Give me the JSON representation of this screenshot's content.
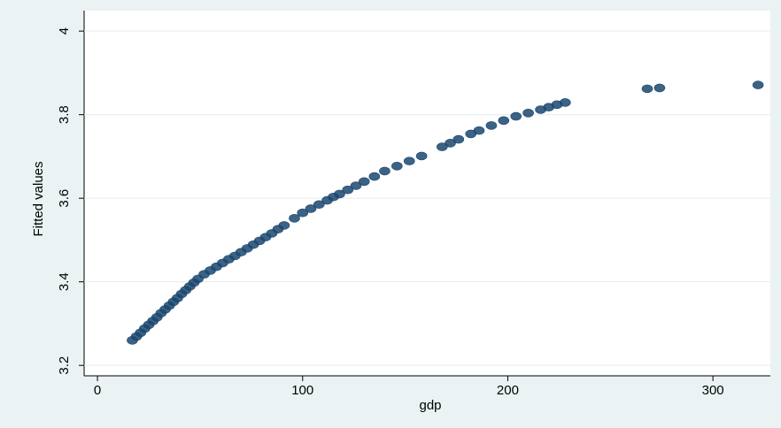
{
  "chart_data": {
    "type": "scatter",
    "x_label": "gdp",
    "y_label": "Fitted values",
    "xlim": [
      -6.5,
      328
    ],
    "ylim": [
      3.175,
      4.049
    ],
    "xticks": [
      0,
      100,
      200,
      300
    ],
    "yticks": [
      3.2,
      3.4,
      3.6,
      3.8,
      4
    ],
    "grid": true,
    "color": "#1a476f",
    "x": [
      17,
      19,
      21,
      23,
      25,
      27,
      29,
      31,
      33,
      35,
      37,
      39,
      41,
      43,
      45,
      47,
      49,
      52,
      55,
      58,
      61,
      64,
      67,
      70,
      73,
      76,
      79,
      82,
      85,
      88,
      91,
      96,
      100,
      104,
      108,
      112,
      115,
      118,
      122,
      126,
      130,
      135,
      140,
      146,
      152,
      158,
      168,
      172,
      176,
      182,
      186,
      192,
      198,
      204,
      210,
      216,
      220,
      224,
      228,
      268,
      274,
      322
    ],
    "values": [
      3.26,
      3.269,
      3.278,
      3.288,
      3.297,
      3.306,
      3.315,
      3.325,
      3.334,
      3.343,
      3.352,
      3.361,
      3.371,
      3.38,
      3.389,
      3.398,
      3.407,
      3.418,
      3.427,
      3.436,
      3.445,
      3.454,
      3.462,
      3.471,
      3.48,
      3.489,
      3.498,
      3.507,
      3.516,
      3.526,
      3.535,
      3.552,
      3.565,
      3.575,
      3.585,
      3.595,
      3.603,
      3.61,
      3.62,
      3.63,
      3.64,
      3.652,
      3.665,
      3.677,
      3.689,
      3.701,
      3.723,
      3.732,
      3.741,
      3.754,
      3.762,
      3.774,
      3.786,
      3.796,
      3.804,
      3.812,
      3.818,
      3.824,
      3.829,
      3.862,
      3.864,
      3.871
    ]
  }
}
